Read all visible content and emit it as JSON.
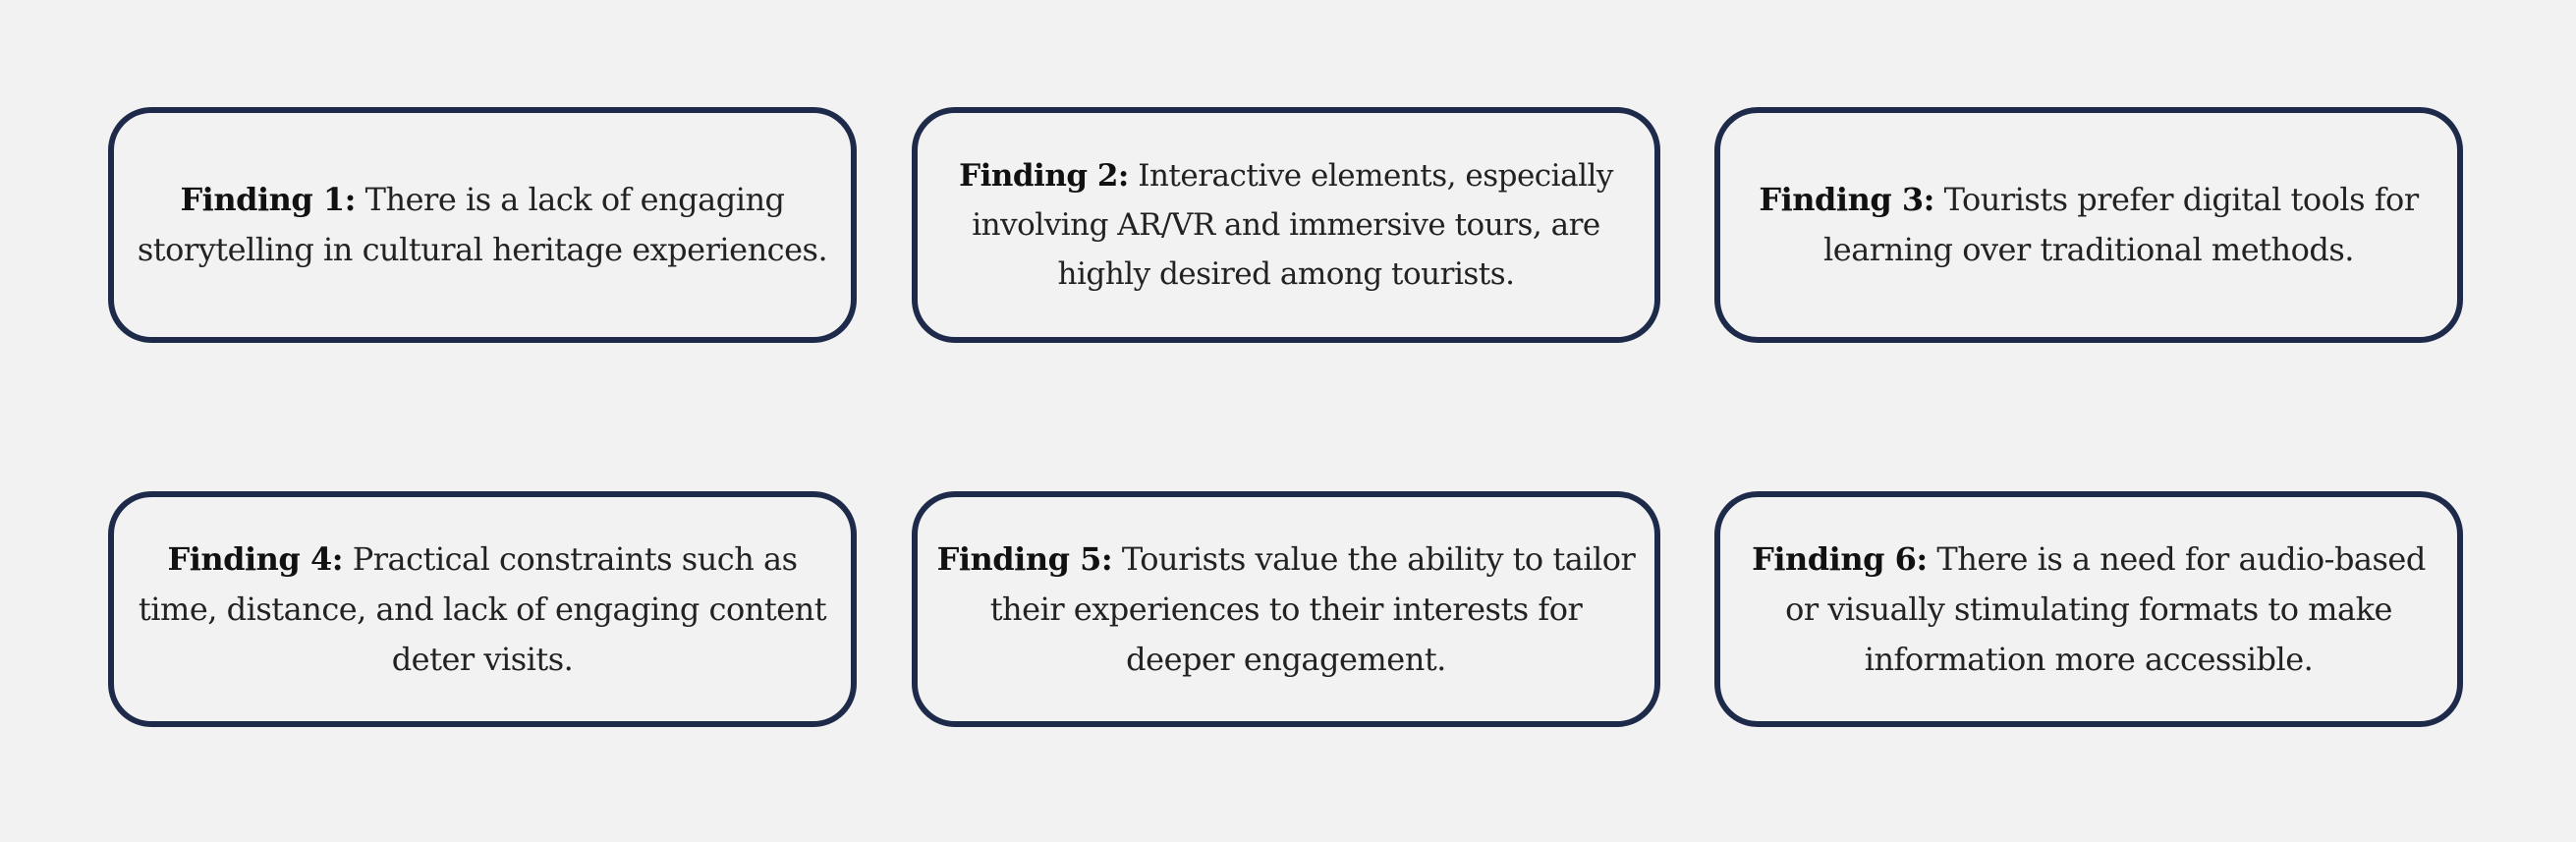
{
  "findings": [
    {
      "label": "Finding 1:",
      "text": " There is a lack of engaging storytelling in cultural heritage experiences."
    },
    {
      "label": "Finding 2:",
      "text": " Interactive elements, especially involving AR/VR and immersive tours, are highly desired among tourists."
    },
    {
      "label": "Finding 3:",
      "text": " Tourists prefer digital tools for learning over traditional methods."
    },
    {
      "label": "Finding 4:",
      "text": " Practical constraints such as time, distance, and lack of engaging content deter visits."
    },
    {
      "label": "Finding 5:",
      "text": " Tourists value the ability to tailor their experiences to their interests for deeper engagement."
    },
    {
      "label": "Finding 6:",
      "text": " There is a need for audio-based or visually stimulating formats to make information more accessible."
    }
  ],
  "colors": {
    "background": "#f2f2f2",
    "card_border": "#1e2a4a",
    "text": "#222222"
  }
}
